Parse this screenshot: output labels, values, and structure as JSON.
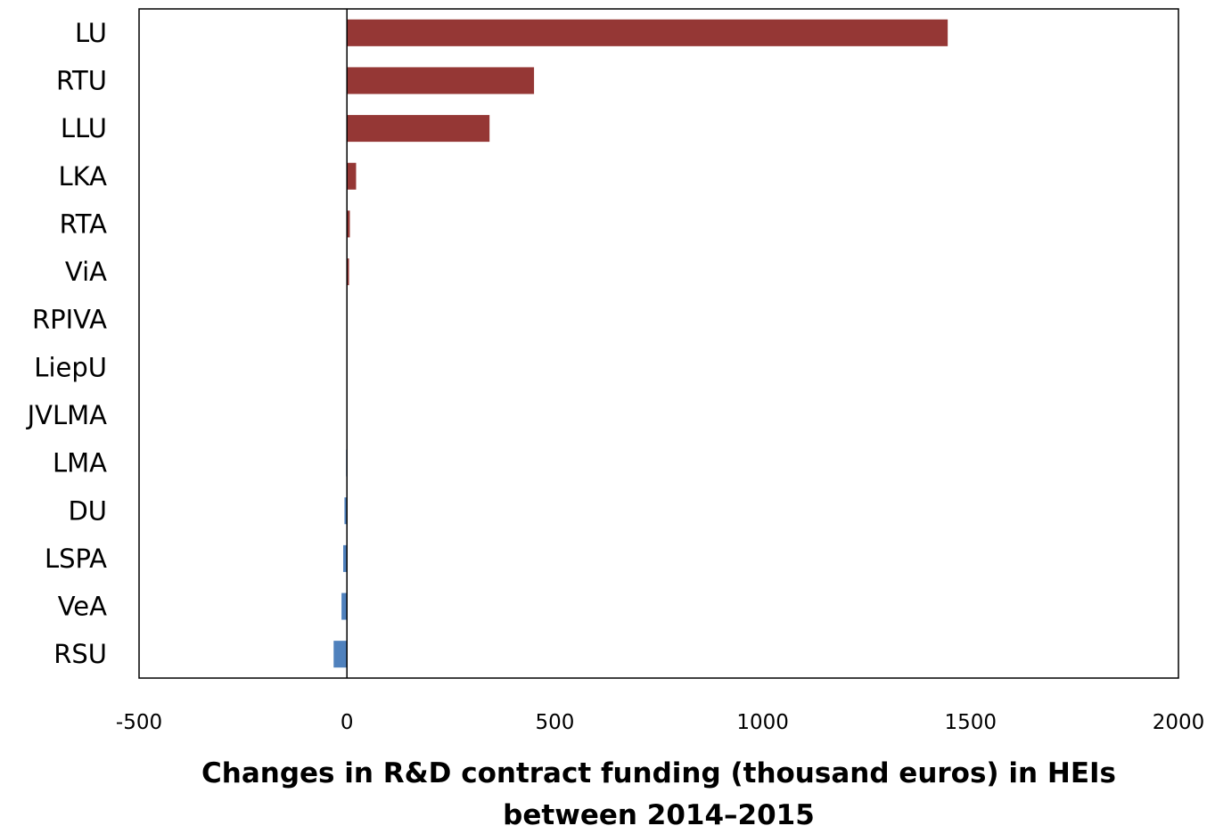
{
  "chart_data": {
    "type": "bar",
    "orientation": "horizontal",
    "categories": [
      "LU",
      "RTU",
      "LLU",
      "LKA",
      "RTA",
      "ViA",
      "RPIVA",
      "LiepU",
      "JVLMA",
      "LMA",
      "DU",
      "LSPA",
      "VeA",
      "RSU"
    ],
    "values": [
      1445,
      450,
      343,
      22,
      7,
      5,
      0,
      0,
      0,
      -2,
      -6,
      -9,
      -13,
      -32
    ],
    "xlim": [
      -500,
      2000
    ],
    "xticks": [
      "-500",
      "0",
      "500",
      "1000",
      "1500",
      "2000"
    ],
    "xlabel_lines": [
      "Changes in R&D contract funding (thousand euros) in HEIs",
      "between 2014–2015"
    ],
    "ylabel": "",
    "title": "",
    "grid": false,
    "legend": "none",
    "colors": {
      "positive": "#953735",
      "negative": "#4f81bd"
    }
  }
}
